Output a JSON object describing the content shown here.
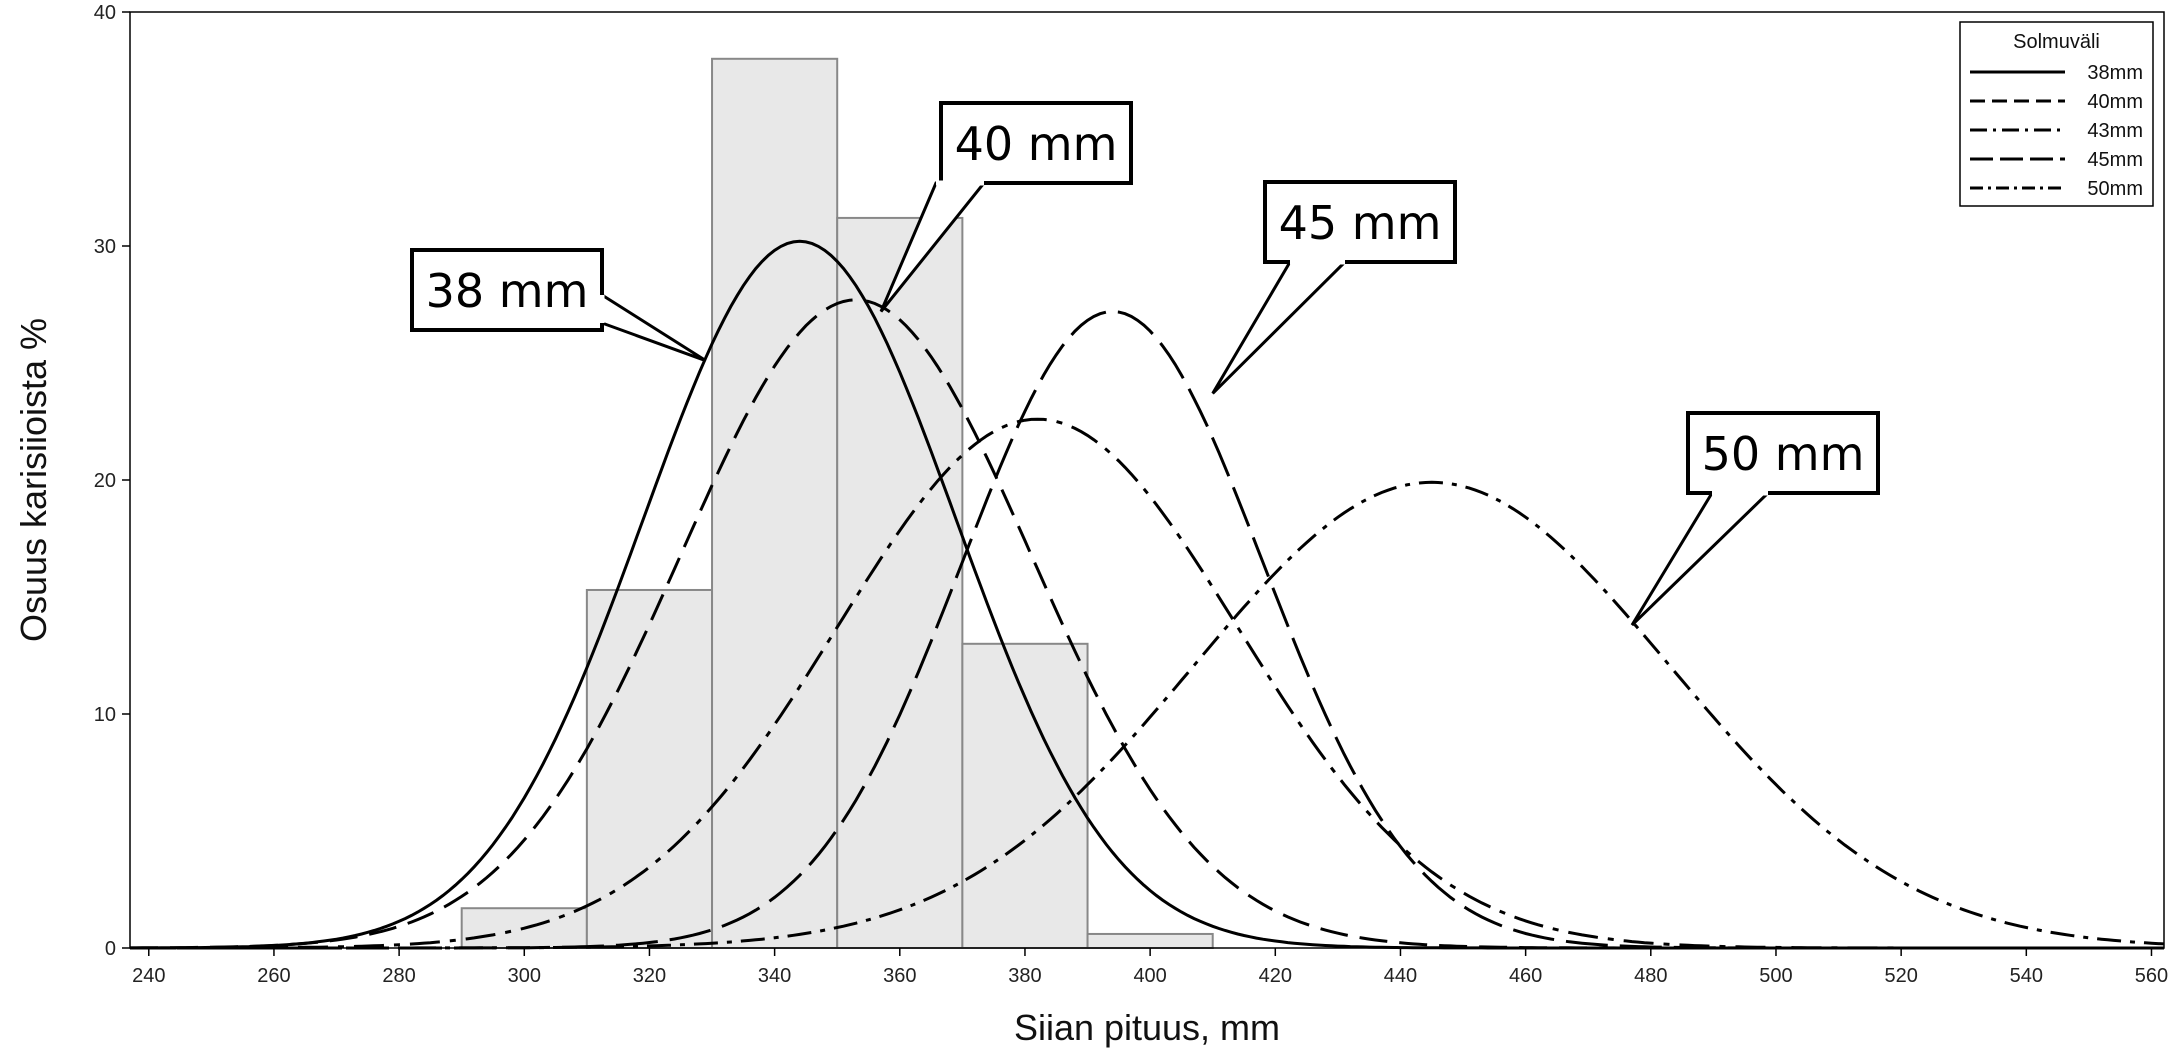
{
  "chart_data": {
    "type": "line",
    "xlabel": "Siian pituus, mm",
    "ylabel": "Osuus karisiioista %",
    "xlim": [
      237,
      562
    ],
    "ylim": [
      0,
      40
    ],
    "x_ticks": [
      240,
      260,
      280,
      300,
      320,
      340,
      360,
      380,
      400,
      420,
      440,
      460,
      480,
      500,
      520,
      540,
      560
    ],
    "y_ticks": [
      0,
      10,
      20,
      30,
      40
    ],
    "grid": false,
    "histogram": {
      "bins": [
        {
          "from": 290,
          "to": 310,
          "value": 1.7
        },
        {
          "from": 310,
          "to": 330,
          "value": 15.3
        },
        {
          "from": 330,
          "to": 350,
          "value": 38.0
        },
        {
          "from": 350,
          "to": 370,
          "value": 31.2
        },
        {
          "from": 370,
          "to": 390,
          "value": 13.0
        },
        {
          "from": 390,
          "to": 410,
          "value": 0.6
        }
      ],
      "fill": "#e8e8e8",
      "stroke": "#888888"
    },
    "series": [
      {
        "name": "38mm",
        "mean": 344,
        "sd": 25,
        "peak": 30.2,
        "dash": ""
      },
      {
        "name": "40mm",
        "mean": 353,
        "sd": 28,
        "peak": 27.7,
        "dash": "28 12"
      },
      {
        "name": "43mm",
        "mean": 382,
        "sd": 32,
        "peak": 22.6,
        "dash": "30 10 6 10"
      },
      {
        "name": "45mm",
        "mean": 394,
        "sd": 24,
        "peak": 27.2,
        "dash": "42 12"
      },
      {
        "name": "50mm",
        "mean": 445,
        "sd": 38,
        "peak": 19.9,
        "dash": "24 9 5 9"
      }
    ],
    "legend": {
      "title": "Solmuväli",
      "position": "top-right"
    },
    "annotations": [
      {
        "text": "38 mm",
        "x": 329,
        "y": 25.1
      },
      {
        "text": "40 mm",
        "x": 357,
        "y": 27.2
      },
      {
        "text": "45 mm",
        "x": 410,
        "y": 23.7
      },
      {
        "text": "50 mm",
        "x": 477,
        "y": 13.8
      }
    ]
  }
}
